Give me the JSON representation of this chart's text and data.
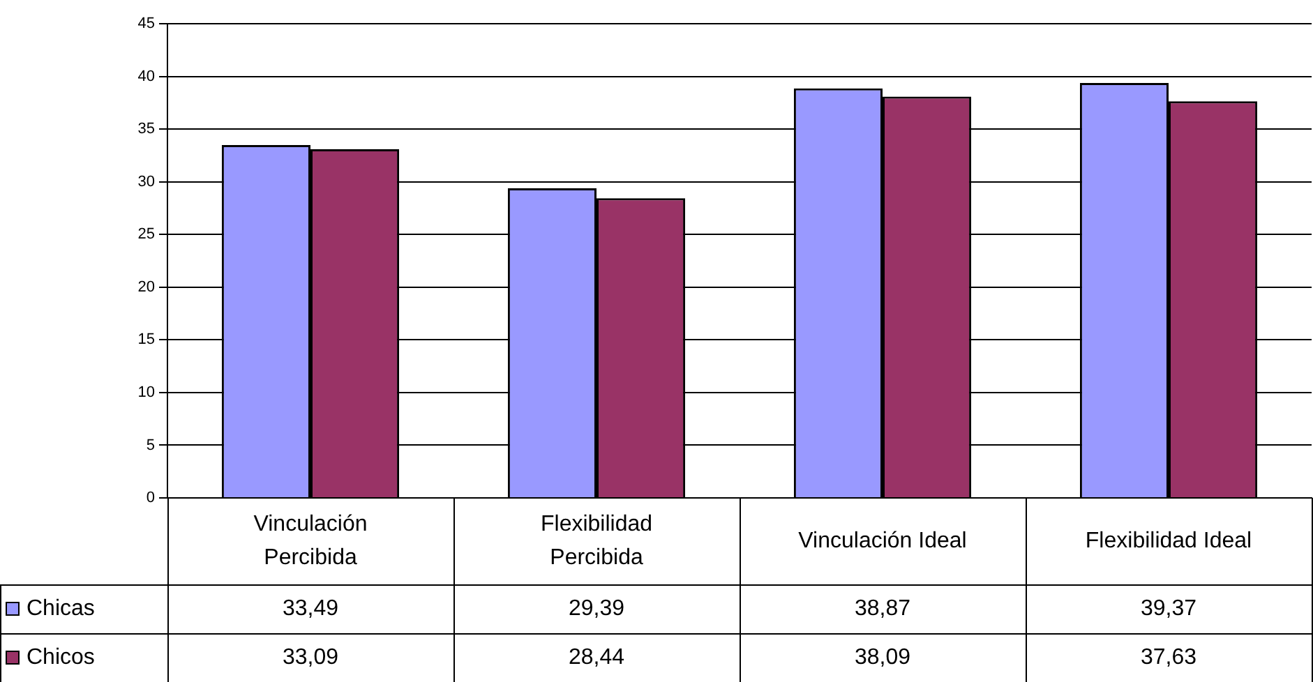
{
  "chart_data": {
    "type": "bar",
    "categories": [
      "Vinculación Percibida",
      "Flexibilidad Percibida",
      "Vinculación Ideal",
      "Flexibilidad Ideal"
    ],
    "series": [
      {
        "name": "Chicas",
        "color": "#9999ff",
        "values": [
          33.49,
          29.39,
          38.87,
          39.37
        ],
        "value_labels": [
          "33,49",
          "29,39",
          "38,87",
          "39,37"
        ]
      },
      {
        "name": "Chicos",
        "color": "#993366",
        "values": [
          33.09,
          28.44,
          38.09,
          37.63
        ],
        "value_labels": [
          "33,09",
          "28,44",
          "38,09",
          "37,63"
        ]
      }
    ],
    "ylim": [
      0,
      45
    ],
    "yticks": [
      0,
      5,
      10,
      15,
      20,
      25,
      30,
      35,
      40,
      45
    ],
    "grid": "y",
    "legend": "bottom left"
  }
}
